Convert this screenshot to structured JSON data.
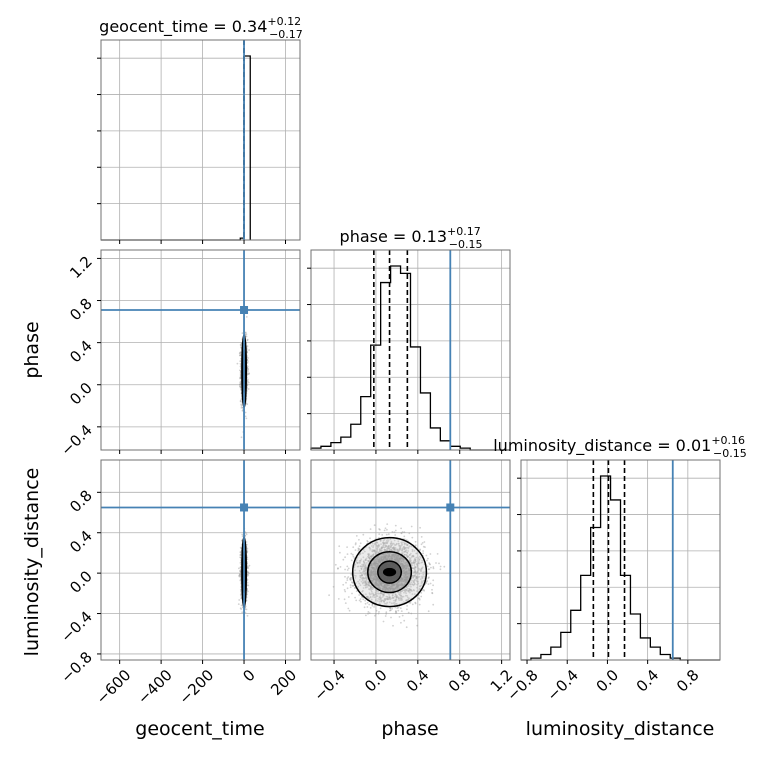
{
  "chart_data": {
    "type": "corner",
    "parameters": [
      "geocent_time",
      "phase",
      "luminosity_distance"
    ],
    "truths": [
      0,
      0.71,
      0.65
    ],
    "titles": [
      {
        "text": "geocent_time = 0.34",
        "plus": "+0.12",
        "minus": "−0.17"
      },
      {
        "text": "phase = 0.13",
        "plus": "+0.17",
        "minus": "−0.15"
      },
      {
        "text": "luminosity_distance = 0.01",
        "plus": "+0.16",
        "minus": "−0.15"
      }
    ],
    "quantiles": [
      [
        0.17,
        0.34,
        0.46
      ],
      [
        -0.02,
        0.13,
        0.3
      ],
      [
        -0.14,
        0.01,
        0.17
      ]
    ],
    "ranges": {
      "geocent_time": [
        -690,
        270
      ],
      "phase": [
        -0.62,
        1.28
      ],
      "luminosity_distance": [
        -0.86,
        1.12
      ]
    },
    "ticks": {
      "geocent_time": [
        "−600",
        "−400",
        "−200",
        "0",
        "200"
      ],
      "phase": [
        "−0.4",
        "0.0",
        "0.4",
        "0.8",
        "1.2"
      ],
      "luminosity_distance": [
        "−0.8",
        "−0.4",
        "0.0",
        "0.4",
        "0.8"
      ]
    },
    "tick_values": {
      "geocent_time": [
        -600,
        -400,
        -200,
        0,
        200
      ],
      "phase": [
        -0.4,
        0.0,
        0.4,
        0.8,
        1.2
      ],
      "luminosity_distance": [
        -0.8,
        -0.4,
        0.0,
        0.4,
        0.8
      ]
    },
    "histograms": {
      "geocent_time": {
        "edges": [
          -690,
          -642,
          -594,
          -546,
          -498,
          -450,
          -402,
          -354,
          -306,
          -258,
          -210,
          -162,
          -114,
          -66,
          -18,
          0,
          30
        ],
        "counts": [
          0,
          0,
          0,
          0,
          0,
          0,
          0,
          0,
          0,
          0,
          0,
          0,
          0,
          0,
          0.01,
          1.0
        ]
      },
      "phase": {
        "edges": [
          -0.62,
          -0.525,
          -0.43,
          -0.335,
          -0.24,
          -0.145,
          -0.05,
          0.045,
          0.14,
          0.235,
          0.33,
          0.425,
          0.52,
          0.615,
          0.71,
          0.805,
          0.9,
          0.995,
          1.09,
          1.185,
          1.28
        ],
        "counts": [
          0.01,
          0.02,
          0.04,
          0.07,
          0.14,
          0.29,
          0.57,
          0.91,
          1.0,
          0.96,
          0.56,
          0.31,
          0.12,
          0.05,
          0.02,
          0.01,
          0.0,
          0.0,
          0.0,
          0.0
        ]
      },
      "luminosity_distance": {
        "edges": [
          -0.86,
          -0.761,
          -0.662,
          -0.563,
          -0.464,
          -0.365,
          -0.266,
          -0.167,
          -0.068,
          0.031,
          0.13,
          0.229,
          0.328,
          0.427,
          0.526,
          0.625,
          0.724,
          0.823,
          0.922,
          1.021,
          1.12
        ],
        "counts": [
          0.0,
          0.01,
          0.03,
          0.07,
          0.15,
          0.27,
          0.46,
          0.72,
          1.0,
          0.87,
          0.46,
          0.25,
          0.12,
          0.07,
          0.03,
          0.01,
          0.0,
          0.0,
          0.0,
          0.0
        ]
      }
    },
    "grid": true
  }
}
